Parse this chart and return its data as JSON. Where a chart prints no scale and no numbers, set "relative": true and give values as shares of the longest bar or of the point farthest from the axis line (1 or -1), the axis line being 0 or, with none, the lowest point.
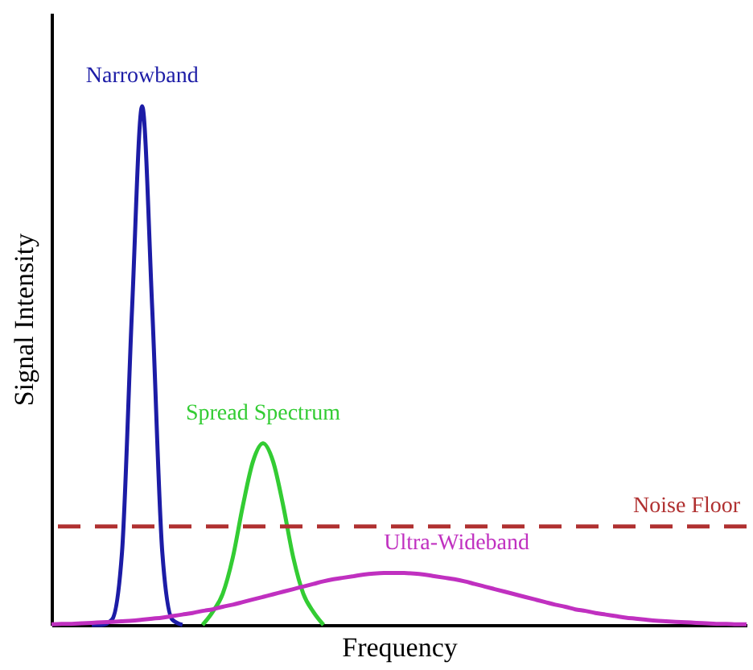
{
  "chart_data": {
    "type": "line",
    "relative": true,
    "xlabel": "Frequency",
    "ylabel": "Signal Intensity",
    "grid": false,
    "marker": "none",
    "line_style": "solid",
    "categories": [
      null,
      null,
      null,
      null,
      null,
      null,
      null,
      null,
      null,
      null,
      null,
      null,
      null,
      null,
      null,
      null,
      null,
      null,
      null,
      null,
      null,
      null,
      null,
      null,
      null,
      null,
      null,
      null,
      null,
      null,
      null,
      null,
      null,
      null,
      null,
      null,
      null,
      null,
      null,
      null,
      null,
      null,
      null,
      null,
      null,
      null,
      null,
      null,
      null,
      null,
      null,
      null,
      null,
      null,
      null,
      null,
      null,
      null,
      null,
      null,
      null,
      null,
      null,
      null,
      null,
      null,
      null,
      null,
      null,
      null
    ],
    "series": [
      {
        "name": "Narrowband",
        "color": "#1c1ca6",
        "values": [
          null,
          null,
          null,
          null,
          0,
          0,
          0.01,
          0.14,
          0.61,
          1,
          0.61,
          0.14,
          0.01,
          0,
          null,
          null,
          null,
          null,
          null,
          null,
          null,
          null,
          null,
          null,
          null,
          null,
          null,
          null,
          null,
          null,
          null,
          null,
          null,
          null,
          null,
          null,
          null,
          null,
          null,
          null,
          null,
          null,
          null,
          null,
          null,
          null,
          null,
          null,
          null,
          null,
          null,
          null,
          null,
          null,
          null,
          null,
          null,
          null,
          null,
          null,
          null,
          null,
          null,
          null,
          null,
          null,
          null,
          null,
          null,
          null
        ]
      },
      {
        "name": "Spread Spectrum",
        "color": "#33cc33",
        "values": [
          null,
          null,
          null,
          null,
          null,
          null,
          null,
          null,
          null,
          null,
          null,
          null,
          null,
          null,
          null,
          0,
          0.025,
          0.06,
          0.13,
          0.23,
          0.315,
          0.35,
          0.315,
          0.23,
          0.13,
          0.06,
          0.025,
          0,
          null,
          null,
          null,
          null,
          null,
          null,
          null,
          null,
          null,
          null,
          null,
          null,
          null,
          null,
          null,
          null,
          null,
          null,
          null,
          null,
          null,
          null,
          null,
          null,
          null,
          null,
          null,
          null,
          null,
          null,
          null,
          null,
          null,
          null,
          null,
          null,
          null,
          null,
          null,
          null,
          null,
          null
        ]
      },
      {
        "name": "Ultra-Wideband",
        "color": "#c030c0",
        "values": [
          0.001,
          0.002,
          0.002,
          0.003,
          0.004,
          0.005,
          0.006,
          0.007,
          0.008,
          0.01,
          0.012,
          0.014,
          0.017,
          0.02,
          0.023,
          0.027,
          0.03,
          0.035,
          0.039,
          0.044,
          0.049,
          0.054,
          0.059,
          0.064,
          0.069,
          0.074,
          0.079,
          0.084,
          0.088,
          0.091,
          0.094,
          0.097,
          0.099,
          0.1,
          0.1,
          0.1,
          0.099,
          0.097,
          0.094,
          0.091,
          0.088,
          0.084,
          0.079,
          0.074,
          0.069,
          0.064,
          0.059,
          0.054,
          0.049,
          0.044,
          0.039,
          0.035,
          0.03,
          0.027,
          0.023,
          0.02,
          0.017,
          0.014,
          0.012,
          0.01,
          0.008,
          0.007,
          0.006,
          0.005,
          0.004,
          0.003,
          0.002,
          0.002,
          0.001,
          0.001
        ]
      }
    ],
    "ref_lines": [
      {
        "axis": "y",
        "value": 0.19,
        "label": "Noise Floor",
        "color": "#b03030",
        "line_style": "dashed"
      }
    ]
  }
}
